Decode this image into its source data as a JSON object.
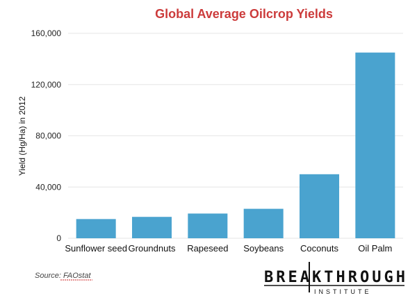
{
  "chart_data": {
    "type": "bar",
    "title": "Global Average Oilcrop Yields",
    "xlabel": "",
    "ylabel": "Yield (Hg/Ha) in 2012",
    "categories": [
      "Sunflower seed",
      "Groundnuts",
      "Rapeseed",
      "Soybeans",
      "Coconuts",
      "Oil Palm"
    ],
    "values": [
      15000,
      16700,
      19300,
      23000,
      50000,
      145000
    ],
    "ylim": [
      0,
      160000
    ],
    "yticks": [
      0,
      40000,
      80000,
      120000,
      160000
    ],
    "ytick_labels": [
      "0",
      "40,000",
      "80,000",
      "120,000",
      "160,000"
    ],
    "grid": true,
    "legend": "none",
    "colors": {
      "bar": "#4aa3cf",
      "title": "#cc3b3b",
      "grid": "#e6e6e6"
    }
  },
  "source": {
    "prefix": "Source: ",
    "name": "FAOstat"
  },
  "logo": {
    "main": "BREAKTHROUGH",
    "sub": "INSTITUTE"
  }
}
